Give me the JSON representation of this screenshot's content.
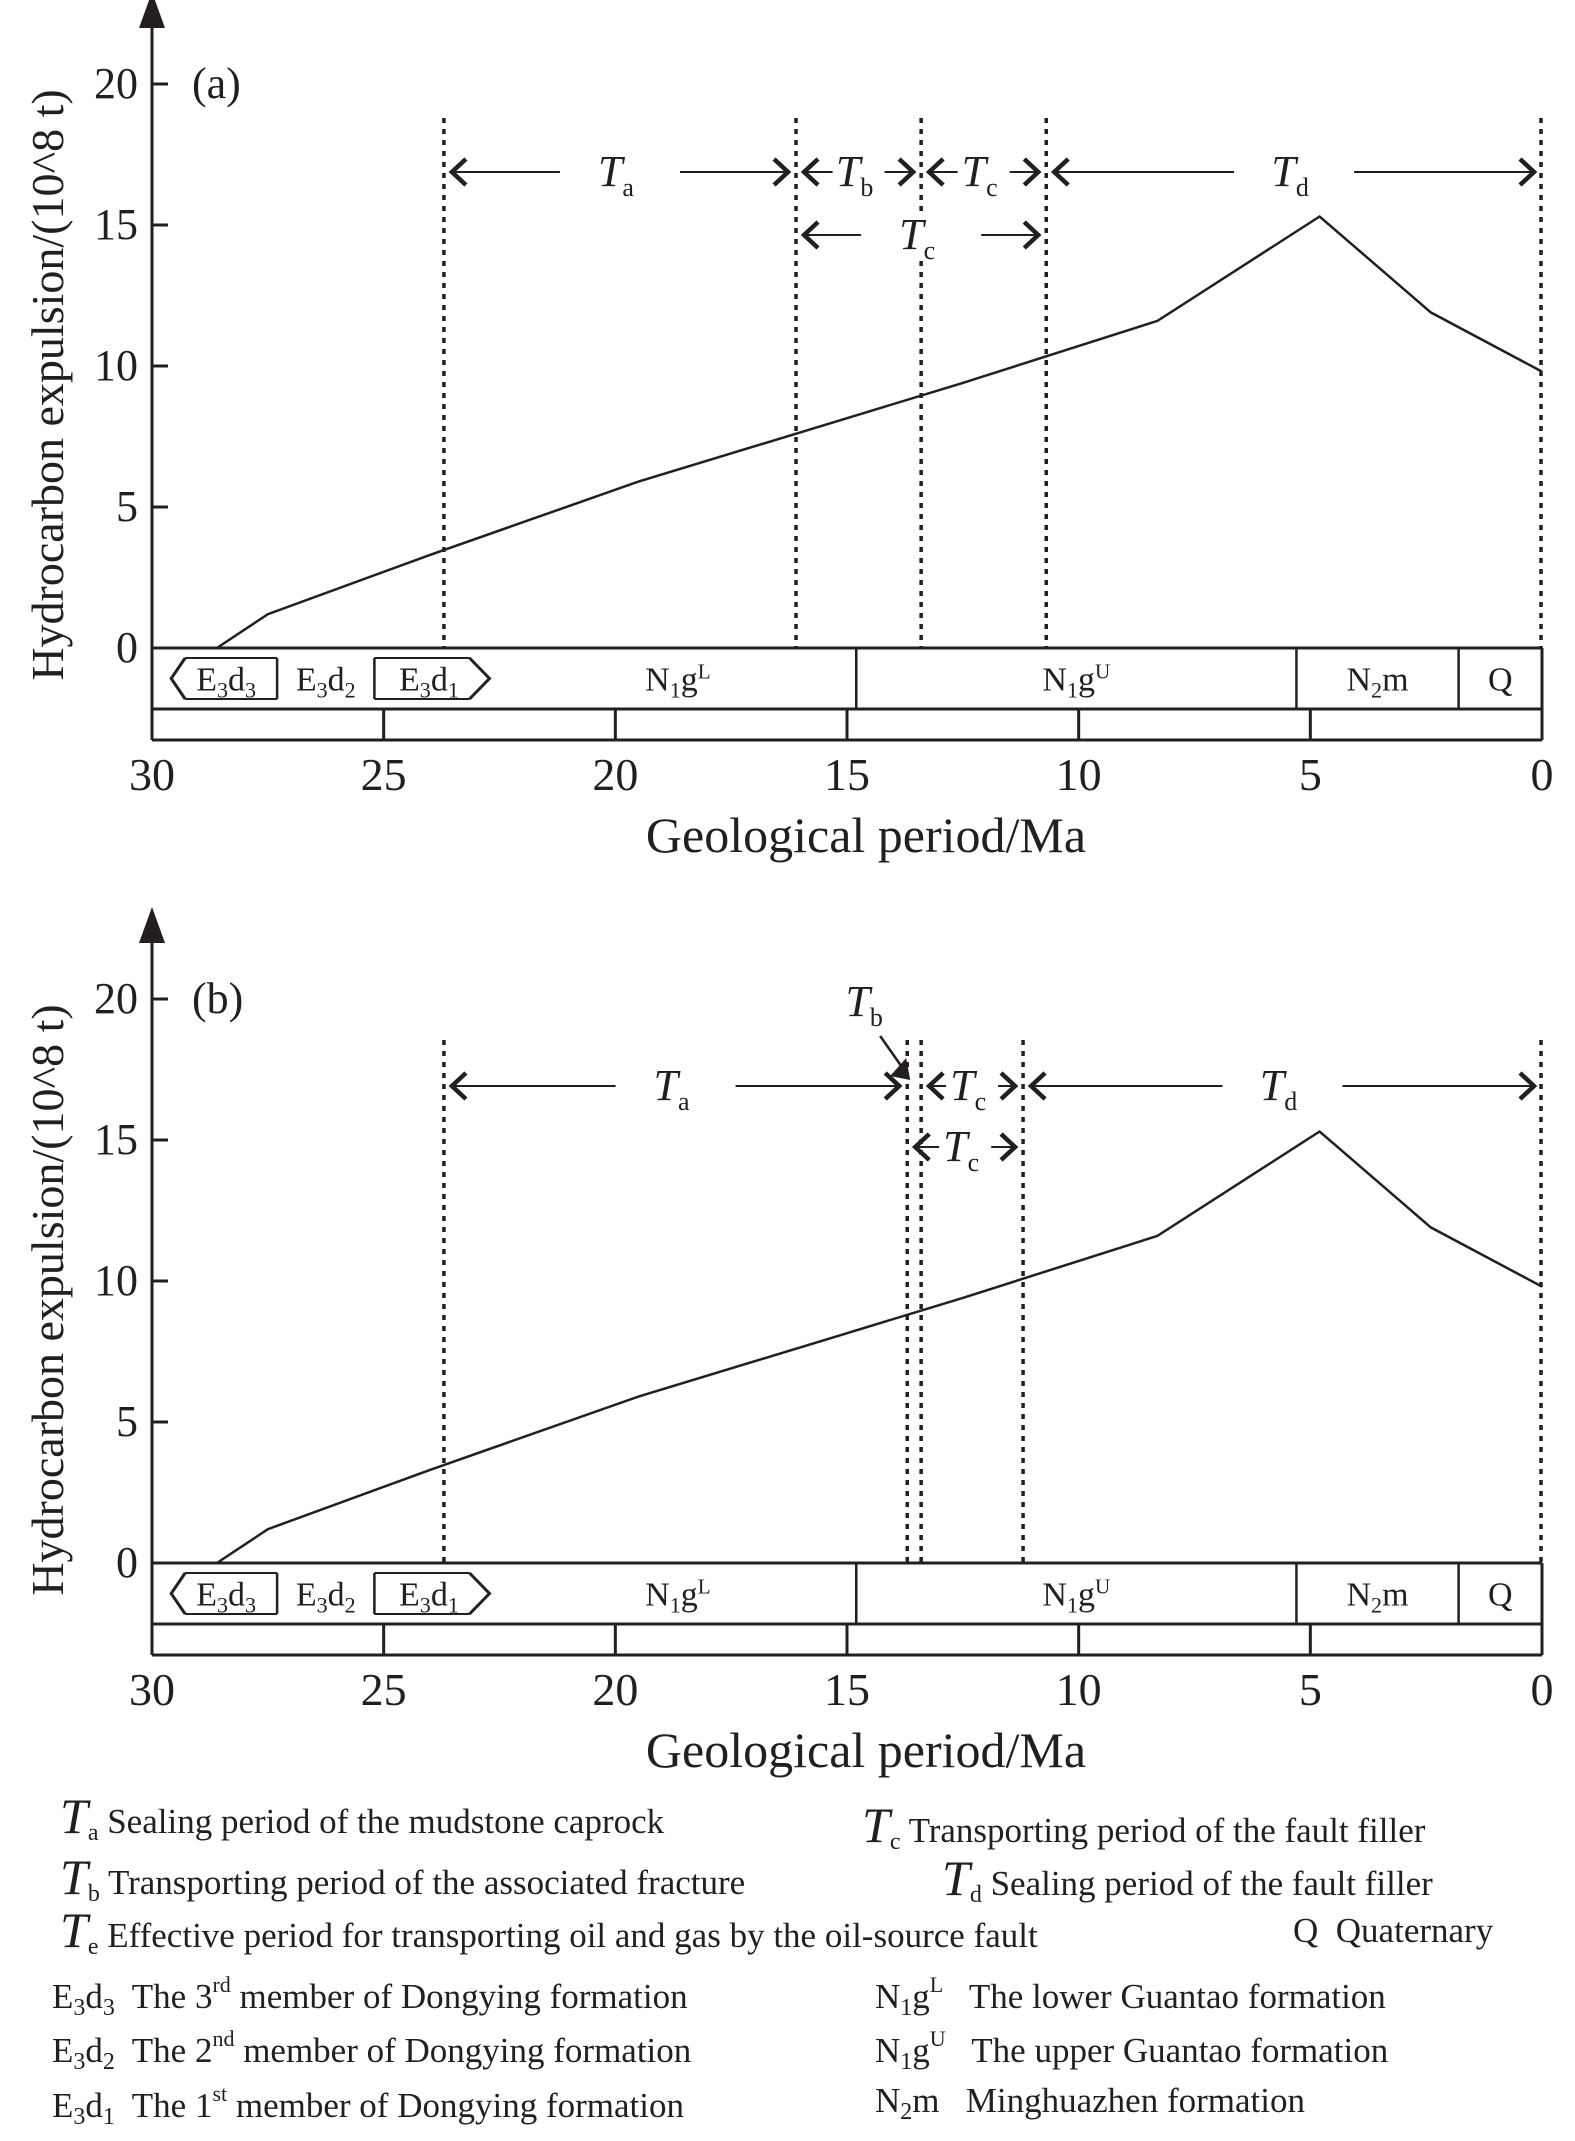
{
  "chart_data": [
    {
      "type": "line",
      "panel_label": "(a)",
      "xlabel": "Geological period/Ma",
      "ylabel": "Hydrocarbon expulsion/(10^8 t)",
      "xlim": [
        30,
        0
      ],
      "ylim": [
        0,
        20
      ],
      "x_ticks": [
        "30",
        "25",
        "20",
        "15",
        "10",
        "5",
        "0"
      ],
      "y_ticks": [
        "0",
        "5",
        "10",
        "15",
        "20"
      ],
      "series": [
        {
          "x": [
            28.6,
            27.5,
            24.0,
            19.5,
            15.3,
            12.5,
            8.3,
            4.8,
            2.4,
            0.0
          ],
          "y": [
            0.0,
            1.2,
            3.3,
            5.9,
            8.0,
            9.4,
            11.6,
            15.3,
            11.9,
            9.8
          ]
        }
      ],
      "period_lines": [
        23.7,
        16.1,
        13.4,
        10.7,
        0.0
      ],
      "periods": [
        {
          "symbol": "T",
          "sub": "a",
          "from": 23.7,
          "to": 16.1,
          "row": 1
        },
        {
          "symbol": "T",
          "sub": "b",
          "from": 16.1,
          "to": 13.4,
          "row": 1
        },
        {
          "symbol": "T",
          "sub": "c",
          "from": 13.4,
          "to": 10.7,
          "row": 1
        },
        {
          "symbol": "T",
          "sub": "d",
          "from": 10.7,
          "to": 0.0,
          "row": 1
        },
        {
          "symbol": "T",
          "sub": "c",
          "from": 16.1,
          "to": 10.7,
          "row": 2
        }
      ],
      "strata": [
        {
          "label": "E3d3",
          "from": 29.5,
          "to": 27.3
        },
        {
          "label": "E3d2",
          "from": 27.3,
          "to": 25.2
        },
        {
          "label": "E3d1",
          "from": 25.2,
          "to": 22.5
        },
        {
          "label": "N1gL",
          "from": 22.5,
          "to": 14.8
        },
        {
          "label": "N1gU",
          "from": 14.8,
          "to": 5.3
        },
        {
          "label": "N2m",
          "from": 5.3,
          "to": 1.8
        },
        {
          "label": "Q",
          "from": 1.8,
          "to": 0.0
        }
      ]
    },
    {
      "type": "line",
      "panel_label": "(b)",
      "xlabel": "Geological period/Ma",
      "ylabel": "Hydrocarbon expulsion/(10^8 t)",
      "xlim": [
        30,
        0
      ],
      "ylim": [
        0,
        20
      ],
      "x_ticks": [
        "30",
        "25",
        "20",
        "15",
        "10",
        "5",
        "0"
      ],
      "y_ticks": [
        "0",
        "5",
        "10",
        "15",
        "20"
      ],
      "series": [
        {
          "x": [
            28.6,
            27.5,
            24.0,
            19.5,
            15.3,
            12.5,
            8.3,
            4.8,
            2.4,
            0.0
          ],
          "y": [
            0.0,
            1.2,
            3.3,
            5.9,
            8.0,
            9.4,
            11.6,
            15.3,
            11.9,
            9.8
          ]
        }
      ],
      "period_lines": [
        23.7,
        13.7,
        13.4,
        11.2,
        0.0
      ],
      "periods": [
        {
          "symbol": "T",
          "sub": "a",
          "from": 23.7,
          "to": 13.7,
          "row": 1
        },
        {
          "symbol": "T",
          "sub": "c",
          "from": 13.4,
          "to": 11.2,
          "row": 1
        },
        {
          "symbol": "T",
          "sub": "d",
          "from": 11.2,
          "to": 0.0,
          "row": 1
        },
        {
          "symbol": "T",
          "sub": "c",
          "from": 13.7,
          "to": 11.2,
          "row": 2
        }
      ],
      "tb_callout": {
        "symbol": "T",
        "sub": "b"
      },
      "strata": [
        {
          "label": "E3d3",
          "from": 29.5,
          "to": 27.3
        },
        {
          "label": "E3d2",
          "from": 27.3,
          "to": 25.2
        },
        {
          "label": "E3d1",
          "from": 25.2,
          "to": 22.5
        },
        {
          "label": "N1gL",
          "from": 22.5,
          "to": 14.8
        },
        {
          "label": "N1gU",
          "from": 14.8,
          "to": 5.3
        },
        {
          "label": "N2m",
          "from": 5.3,
          "to": 1.8
        },
        {
          "label": "Q",
          "from": 1.8,
          "to": 0.0
        }
      ]
    }
  ],
  "legend": {
    "ta": {
      "symbol": "T",
      "sub": "a",
      "text": "Sealing period of the mudstone caprock"
    },
    "tb": {
      "symbol": "T",
      "sub": "b",
      "text": "Transporting period of the associated fracture"
    },
    "te": {
      "symbol": "T",
      "sub": "e",
      "text": "Effective period for transporting oil and gas by the oil-source fault"
    },
    "tc": {
      "symbol": "T",
      "sub": "c",
      "text": "Transporting period of the fault filler"
    },
    "td": {
      "symbol": "T",
      "sub": "d",
      "text": "Sealing period of the fault filler"
    },
    "q": {
      "code": "Q",
      "text": "Quaternary"
    },
    "e3d3": {
      "text": "The 3rd member of Dongying formation",
      "ord_num": "3",
      "ord_suffix": "rd",
      "rest": "member of Dongying formation",
      "lead": "The"
    },
    "e3d2": {
      "text": "The 2nd member of Dongying formation",
      "ord_num": "2",
      "ord_suffix": "nd",
      "rest": "member of Dongying formation",
      "lead": "The"
    },
    "e3d1": {
      "text": "The 1st member of Dongying formation",
      "ord_num": "1",
      "ord_suffix": "st",
      "rest": "member of Dongying formation",
      "lead": "The"
    },
    "n1gl": {
      "text": "The lower Guantao formation"
    },
    "n1gu": {
      "text": "The upper Guantao formation"
    },
    "n2m": {
      "text": "Minghuazhen formation"
    }
  }
}
